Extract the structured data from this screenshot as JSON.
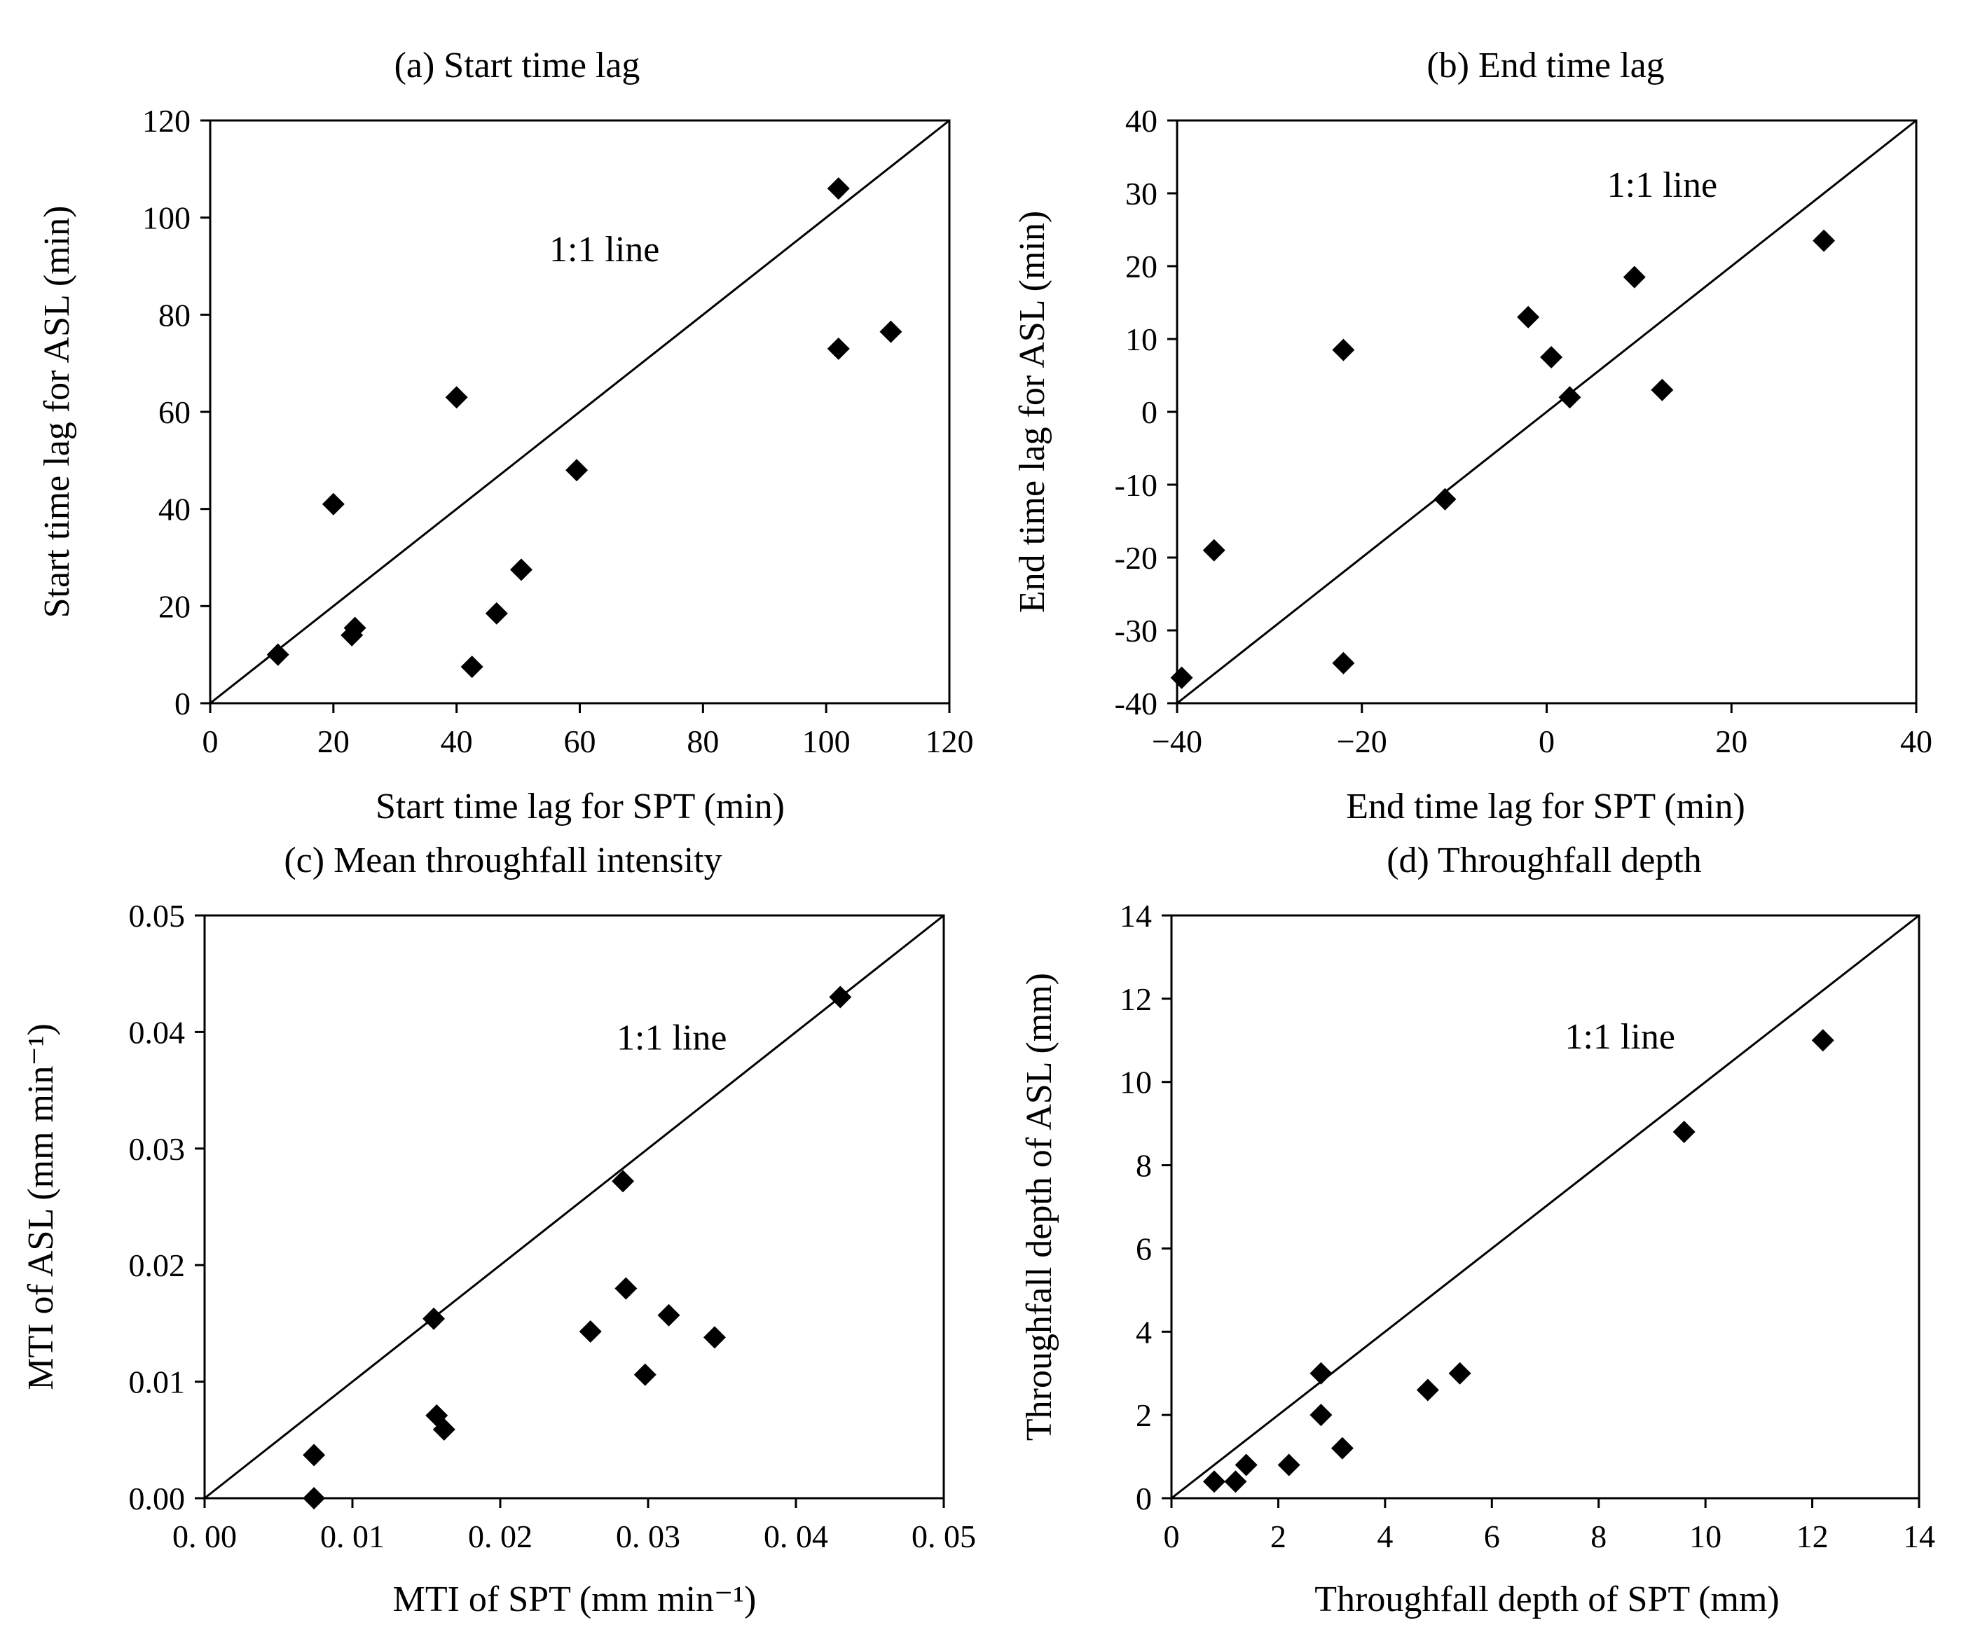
{
  "chart_data": [
    {
      "id": "a",
      "type": "scatter",
      "title": "(a) Start time lag",
      "xlabel": "Start time lag for SPT (min)",
      "ylabel": "Start time lag for ASL (min)",
      "xlim": [
        0,
        120
      ],
      "ylim": [
        0,
        120
      ],
      "xticks": [
        0,
        20,
        40,
        60,
        80,
        100,
        120
      ],
      "yticks": [
        0,
        20,
        40,
        60,
        80,
        100,
        120
      ],
      "xtick_labels": [
        "0",
        "20",
        "40",
        "60",
        "80",
        "100",
        "120"
      ],
      "ytick_labels": [
        "0",
        "20",
        "40",
        "60",
        "80",
        "100",
        "120"
      ],
      "line_label": "1:1 line",
      "line_label_at": [
        64,
        91
      ],
      "points": [
        [
          11,
          10
        ],
        [
          20,
          41
        ],
        [
          23,
          14
        ],
        [
          23.5,
          15.5
        ],
        [
          40,
          63
        ],
        [
          42.5,
          7.5
        ],
        [
          46.5,
          18.5
        ],
        [
          50.5,
          27.5
        ],
        [
          59.5,
          48
        ],
        [
          102,
          106
        ],
        [
          102,
          73
        ],
        [
          110.5,
          76.5
        ]
      ]
    },
    {
      "id": "b",
      "type": "scatter",
      "title": "(b) End time lag",
      "xlabel": "End time lag for SPT (min)",
      "ylabel": "End time lag for ASL (min)",
      "xlim": [
        -40,
        40
      ],
      "ylim": [
        -40,
        40
      ],
      "xticks": [
        -40,
        -20,
        0,
        20,
        40
      ],
      "yticks": [
        -40,
        -30,
        -20,
        -10,
        0,
        10,
        20,
        30,
        40
      ],
      "xtick_labels": [
        "−40",
        "−20",
        "0",
        "20",
        "40"
      ],
      "ytick_labels": [
        "-40",
        "-30",
        "-20",
        "-10",
        "0",
        "10",
        "20",
        "30",
        "40"
      ],
      "line_label": "1:1 line",
      "line_label_at": [
        12.5,
        29.5
      ],
      "points": [
        [
          -39.5,
          -36.5
        ],
        [
          -36,
          -19
        ],
        [
          -22,
          8.5
        ],
        [
          -22,
          -34.5
        ],
        [
          -11,
          -12
        ],
        [
          -2,
          13
        ],
        [
          0.5,
          7.5
        ],
        [
          2.5,
          2
        ],
        [
          9.5,
          18.5
        ],
        [
          12.5,
          3
        ],
        [
          30,
          23.5
        ]
      ]
    },
    {
      "id": "c",
      "type": "scatter",
      "title": "(c) Mean throughfall intensity",
      "xlabel": "MTI of SPT (mm min⁻¹)",
      "ylabel": "MTI of ASL (mm min⁻¹)",
      "xlim": [
        0,
        0.05
      ],
      "ylim": [
        0,
        0.05
      ],
      "xticks": [
        0,
        0.01,
        0.02,
        0.03,
        0.04,
        0.05
      ],
      "yticks": [
        0,
        0.01,
        0.02,
        0.03,
        0.04,
        0.05
      ],
      "xtick_labels": [
        "0. 00",
        "0. 01",
        "0. 02",
        "0. 03",
        "0. 04",
        "0. 05"
      ],
      "ytick_labels": [
        "0.00",
        "0.01",
        "0.02",
        "0.03",
        "0.04",
        "0.05"
      ],
      "line_label": "1:1 line",
      "line_label_at": [
        0.0316,
        0.0385
      ],
      "points": [
        [
          0.0074,
          0.0037
        ],
        [
          0.0074,
          0.0
        ],
        [
          0.0155,
          0.0154
        ],
        [
          0.0157,
          0.0071
        ],
        [
          0.0162,
          0.0059
        ],
        [
          0.0261,
          0.0143
        ],
        [
          0.0283,
          0.0272
        ],
        [
          0.0285,
          0.018
        ],
        [
          0.0298,
          0.0106
        ],
        [
          0.0314,
          0.0157
        ],
        [
          0.0345,
          0.0138
        ],
        [
          0.043,
          0.043
        ]
      ]
    },
    {
      "id": "d",
      "type": "scatter",
      "title": "(d) Throughfall depth",
      "xlabel": "Throughfall depth of SPT (mm)",
      "ylabel": "Throughfall depth of ASL (mm)",
      "xlim": [
        0,
        14
      ],
      "ylim": [
        0,
        14
      ],
      "xticks": [
        0,
        2,
        4,
        6,
        8,
        10,
        12,
        14
      ],
      "yticks": [
        0,
        2,
        4,
        6,
        8,
        10,
        12,
        14
      ],
      "xtick_labels": [
        "0",
        "2",
        "4",
        "6",
        "8",
        "10",
        "12",
        "14"
      ],
      "ytick_labels": [
        "0",
        "2",
        "4",
        "6",
        "8",
        "10",
        "12",
        "14"
      ],
      "line_label": "1:1 line",
      "line_label_at": [
        8.4,
        10.8
      ],
      "points": [
        [
          0.8,
          0.4
        ],
        [
          1.2,
          0.4
        ],
        [
          1.4,
          0.8
        ],
        [
          2.2,
          0.8
        ],
        [
          2.8,
          3.0
        ],
        [
          2.8,
          2.0
        ],
        [
          3.2,
          1.2
        ],
        [
          4.8,
          2.6
        ],
        [
          5.4,
          3.0
        ],
        [
          9.6,
          8.8
        ],
        [
          12.2,
          11.0
        ]
      ]
    }
  ]
}
